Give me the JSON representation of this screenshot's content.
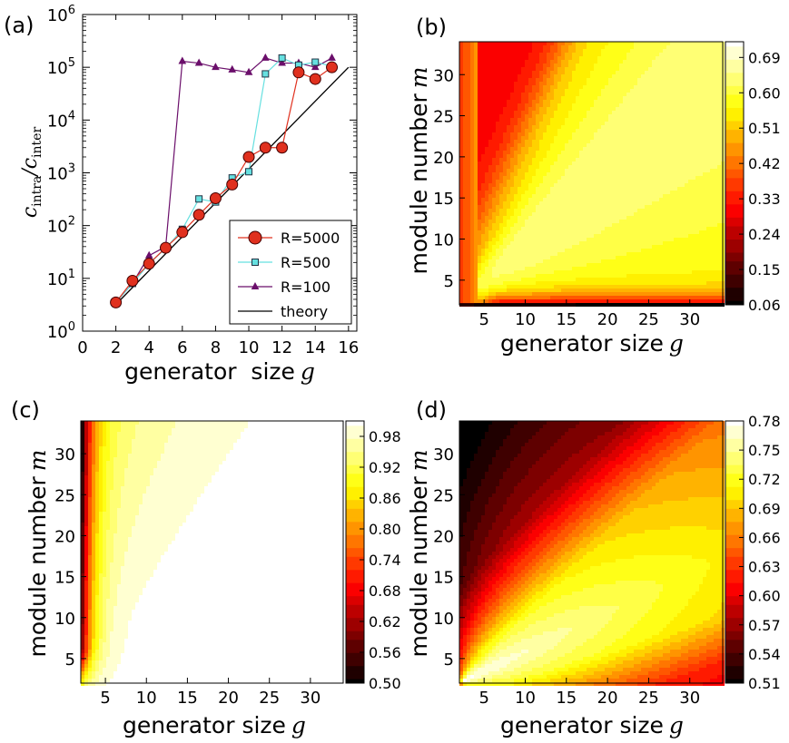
{
  "chart_data": [
    {
      "panel": "(a)",
      "type": "line",
      "xlabel": "generator  size",
      "xvar": "g",
      "ylabel_num": "c",
      "ylabel_num_sub": "intra",
      "ylabel_den": "c",
      "ylabel_den_sub": "inter",
      "yscale": "log",
      "xlim": [
        0,
        16.5
      ],
      "ylim_exp": [
        0,
        6
      ],
      "x_ticks": [
        "0",
        "2",
        "4",
        "6",
        "8",
        "10",
        "12",
        "14",
        "16"
      ],
      "y_tick_base": "10",
      "y_tick_exps": [
        "0",
        "1",
        "2",
        "3",
        "4",
        "5",
        "6"
      ],
      "legend_position": "lower-right",
      "series": [
        {
          "name": "R=5000",
          "color": "#e0301e",
          "marker": "circle",
          "x": [
            2,
            3,
            4,
            5,
            6,
            7,
            8,
            9,
            10,
            11,
            12,
            13,
            14,
            15
          ],
          "y": [
            3.5,
            9,
            19,
            38,
            75,
            160,
            330,
            600,
            2000,
            3000,
            3000,
            80000,
            60000,
            100000
          ]
        },
        {
          "name": "R=500",
          "color": "#66e0e0",
          "marker": "square",
          "x": [
            2,
            3,
            4,
            5,
            6,
            7,
            8,
            9,
            10,
            11,
            12,
            13,
            14,
            15
          ],
          "y": [
            3.5,
            8,
            19,
            37,
            85,
            320,
            280,
            800,
            1050,
            75000,
            150000,
            110000,
            125000,
            105000
          ]
        },
        {
          "name": "R=100",
          "color": "#6b0f6b",
          "marker": "triangle",
          "x": [
            2,
            3,
            4,
            5,
            6,
            7,
            8,
            9,
            10,
            11,
            12,
            13,
            14,
            15
          ],
          "y": [
            3.5,
            8,
            27,
            40,
            130000,
            120000,
            100000,
            90000,
            80000,
            150000,
            120000,
            120000,
            100000,
            150000
          ]
        },
        {
          "name": "theory",
          "color": "#000000",
          "marker": "none",
          "x": [
            2,
            16
          ],
          "y": [
            3.2,
            100000
          ]
        }
      ]
    },
    {
      "panel": "(b)",
      "type": "heatmap",
      "xlabel": "generator  size",
      "xvar": "g",
      "ylabel": "module number",
      "yvar": "m",
      "xlim": [
        2,
        34
      ],
      "ylim": [
        2,
        34
      ],
      "x_ticks": [
        "5",
        "10",
        "15",
        "20",
        "25",
        "30"
      ],
      "y_ticks": [
        "5",
        "10",
        "15",
        "20",
        "25",
        "30"
      ],
      "colorbar_ticks": [
        "0.06",
        "0.15",
        "0.24",
        "0.33",
        "0.42",
        "0.51",
        "0.60",
        "0.69"
      ],
      "value_range": [
        0.06,
        0.73
      ]
    },
    {
      "panel": "(c)",
      "type": "heatmap",
      "xlabel": "generator  size",
      "xvar": "g",
      "ylabel": "module number",
      "yvar": "m",
      "xlim": [
        2,
        34
      ],
      "ylim": [
        2,
        34
      ],
      "x_ticks": [
        "5",
        "10",
        "15",
        "20",
        "25",
        "30"
      ],
      "y_ticks": [
        "5",
        "10",
        "15",
        "20",
        "25",
        "30"
      ],
      "colorbar_ticks": [
        "0.50",
        "0.56",
        "0.62",
        "0.68",
        "0.74",
        "0.80",
        "0.86",
        "0.92",
        "0.98"
      ],
      "value_range": [
        0.5,
        1.01
      ]
    },
    {
      "panel": "(d)",
      "type": "heatmap",
      "xlabel": "generator  size",
      "xvar": "g",
      "ylabel": "module number",
      "yvar": "m",
      "xlim": [
        2,
        34
      ],
      "ylim": [
        2,
        34
      ],
      "x_ticks": [
        "5",
        "10",
        "15",
        "20",
        "25",
        "30"
      ],
      "y_ticks": [
        "5",
        "10",
        "15",
        "20",
        "25",
        "30"
      ],
      "colorbar_ticks": [
        "0.51",
        "0.54",
        "0.57",
        "0.60",
        "0.63",
        "0.66",
        "0.69",
        "0.72",
        "0.75",
        "0.78"
      ],
      "value_range": [
        0.51,
        0.78
      ]
    }
  ]
}
